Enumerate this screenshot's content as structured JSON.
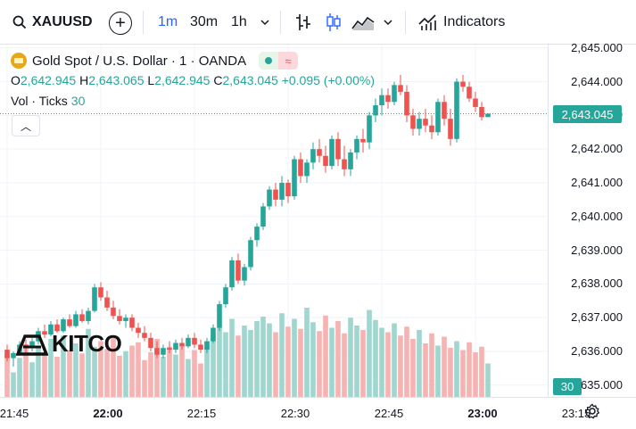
{
  "toolbar": {
    "symbol": "XAUUSD",
    "timeframes": [
      "1m",
      "30m",
      "1h"
    ],
    "active_timeframe": "1m",
    "indicators_label": "Indicators"
  },
  "legend": {
    "title": "Gold Spot / U.S. Dollar · 1 · OANDA",
    "open_label": "O",
    "open": "2,642.945",
    "high_label": "H",
    "high": "2,643.065",
    "low_label": "L",
    "low": "2,642.945",
    "close_label": "C",
    "close": "2,643.045",
    "change": "+0.095 (+0.00%)",
    "volume_label": "Vol · Ticks",
    "volume_value": "30"
  },
  "price_axis": {
    "ticks": [
      "2,645.000",
      "2,644.000",
      "2,643.000",
      "2,642.000",
      "2,641.000",
      "2,640.000",
      "2,639.000",
      "2,638.000",
      "2,637.000",
      "2,636.000",
      "2,635.000"
    ],
    "last_price": "2,643.045",
    "last_volume": "30"
  },
  "time_axis": {
    "labels": [
      {
        "text": "21:45",
        "bold": false
      },
      {
        "text": "22:00",
        "bold": true
      },
      {
        "text": "22:15",
        "bold": false
      },
      {
        "text": "22:30",
        "bold": false
      },
      {
        "text": "22:45",
        "bold": false
      },
      {
        "text": "23:00",
        "bold": true
      },
      {
        "text": "23:15",
        "bold": false
      }
    ]
  },
  "watermark": "KITCO",
  "colors": {
    "up": "#26a69a",
    "down": "#ef5350",
    "vol_up": "#9fd6cf",
    "vol_down": "#f7b2b2",
    "accent": "#2962ff"
  },
  "chart_data": {
    "type": "candlestick",
    "x_start": "21:45",
    "interval": "1m",
    "ohlc": [
      [
        2636.05,
        2636.2,
        2635.7,
        2635.8
      ],
      [
        2635.8,
        2636.0,
        2635.55,
        2635.95
      ],
      [
        2635.95,
        2636.3,
        2635.9,
        2636.2
      ],
      [
        2636.2,
        2636.35,
        2635.95,
        2636.1
      ],
      [
        2636.1,
        2636.4,
        2636.0,
        2636.3
      ],
      [
        2636.3,
        2636.7,
        2636.2,
        2636.6
      ],
      [
        2636.6,
        2636.8,
        2636.4,
        2636.5
      ],
      [
        2636.5,
        2636.9,
        2636.45,
        2636.8
      ],
      [
        2636.8,
        2636.95,
        2636.55,
        2636.6
      ],
      [
        2636.6,
        2637.0,
        2636.55,
        2636.95
      ],
      [
        2636.95,
        2637.1,
        2636.7,
        2636.75
      ],
      [
        2636.75,
        2637.2,
        2636.7,
        2637.1
      ],
      [
        2637.1,
        2637.25,
        2636.85,
        2636.9
      ],
      [
        2636.9,
        2637.3,
        2636.8,
        2637.2
      ],
      [
        2637.2,
        2638.0,
        2637.15,
        2637.9
      ],
      [
        2637.9,
        2638.05,
        2637.5,
        2637.6
      ],
      [
        2637.6,
        2637.8,
        2637.2,
        2637.3
      ],
      [
        2637.3,
        2637.5,
        2636.95,
        2637.05
      ],
      [
        2637.05,
        2637.25,
        2636.8,
        2636.9
      ],
      [
        2636.9,
        2637.1,
        2636.7,
        2637.0
      ],
      [
        2637.0,
        2637.1,
        2636.6,
        2636.7
      ],
      [
        2636.7,
        2636.85,
        2636.4,
        2636.55
      ],
      [
        2636.55,
        2636.75,
        2636.3,
        2636.4
      ],
      [
        2636.4,
        2636.55,
        2636.0,
        2636.1
      ],
      [
        2636.1,
        2636.3,
        2635.8,
        2635.9
      ],
      [
        2635.9,
        2636.2,
        2635.8,
        2636.1
      ],
      [
        2636.1,
        2636.3,
        2635.95,
        2636.05
      ],
      [
        2636.05,
        2636.35,
        2635.95,
        2636.25
      ],
      [
        2636.25,
        2636.4,
        2636.05,
        2636.15
      ],
      [
        2636.15,
        2636.5,
        2636.1,
        2636.4
      ],
      [
        2636.4,
        2636.55,
        2636.1,
        2636.2
      ],
      [
        2636.2,
        2636.35,
        2635.95,
        2636.05
      ],
      [
        2636.05,
        2636.4,
        2635.95,
        2636.3
      ],
      [
        2636.3,
        2636.8,
        2636.25,
        2636.7
      ],
      [
        2636.7,
        2637.5,
        2636.6,
        2637.4
      ],
      [
        2637.4,
        2638.0,
        2637.3,
        2637.9
      ],
      [
        2637.9,
        2638.8,
        2637.8,
        2638.7
      ],
      [
        2638.7,
        2638.9,
        2638.0,
        2638.1
      ],
      [
        2638.1,
        2638.6,
        2637.95,
        2638.5
      ],
      [
        2638.5,
        2639.4,
        2638.4,
        2639.3
      ],
      [
        2639.3,
        2639.8,
        2639.1,
        2639.7
      ],
      [
        2639.7,
        2640.4,
        2639.6,
        2640.3
      ],
      [
        2640.3,
        2640.9,
        2640.2,
        2640.8
      ],
      [
        2640.8,
        2641.0,
        2640.3,
        2640.5
      ],
      [
        2640.5,
        2641.2,
        2640.3,
        2641.0
      ],
      [
        2641.0,
        2641.1,
        2640.4,
        2640.6
      ],
      [
        2640.6,
        2641.8,
        2640.5,
        2641.7
      ],
      [
        2641.7,
        2641.9,
        2641.0,
        2641.2
      ],
      [
        2641.2,
        2641.7,
        2641.0,
        2641.6
      ],
      [
        2641.6,
        2642.2,
        2641.4,
        2642.0
      ],
      [
        2642.0,
        2642.3,
        2641.6,
        2641.8
      ],
      [
        2641.8,
        2642.1,
        2641.3,
        2641.5
      ],
      [
        2641.5,
        2642.4,
        2641.4,
        2642.3
      ],
      [
        2642.3,
        2642.5,
        2641.5,
        2641.7
      ],
      [
        2641.7,
        2642.1,
        2641.2,
        2641.4
      ],
      [
        2641.4,
        2642.0,
        2641.2,
        2641.9
      ],
      [
        2641.9,
        2642.4,
        2641.7,
        2642.3
      ],
      [
        2642.3,
        2642.6,
        2641.9,
        2642.2
      ],
      [
        2642.2,
        2643.1,
        2642.0,
        2643.0
      ],
      [
        2643.0,
        2643.5,
        2642.8,
        2643.3
      ],
      [
        2643.3,
        2643.8,
        2643.0,
        2643.6
      ],
      [
        2643.6,
        2643.8,
        2643.2,
        2643.4
      ],
      [
        2643.4,
        2644.0,
        2643.3,
        2643.9
      ],
      [
        2643.9,
        2644.2,
        2643.6,
        2643.7
      ],
      [
        2643.7,
        2643.9,
        2642.8,
        2643.0
      ],
      [
        2643.0,
        2643.2,
        2642.4,
        2642.6
      ],
      [
        2642.6,
        2643.1,
        2642.4,
        2642.9
      ],
      [
        2642.9,
        2643.2,
        2642.5,
        2642.7
      ],
      [
        2642.7,
        2643.0,
        2642.3,
        2642.5
      ],
      [
        2642.5,
        2643.5,
        2642.4,
        2643.4
      ],
      [
        2643.4,
        2643.6,
        2642.7,
        2642.9
      ],
      [
        2642.9,
        2643.2,
        2642.1,
        2642.3
      ],
      [
        2642.3,
        2644.1,
        2642.2,
        2644.0
      ],
      [
        2644.0,
        2644.2,
        2643.7,
        2643.85
      ],
      [
        2643.85,
        2644.0,
        2643.4,
        2643.5
      ],
      [
        2643.5,
        2643.7,
        2643.1,
        2643.25
      ],
      [
        2643.25,
        2643.4,
        2642.85,
        2642.95
      ],
      [
        2642.95,
        2643.07,
        2642.95,
        2643.05
      ]
    ],
    "volume": [
      38,
      22,
      35,
      47,
      31,
      44,
      40,
      52,
      36,
      55,
      42,
      48,
      39,
      61,
      45,
      50,
      43,
      55,
      37,
      41,
      46,
      49,
      33,
      40,
      52,
      36,
      45,
      38,
      47,
      34,
      42,
      30,
      50,
      56,
      62,
      58,
      70,
      55,
      64,
      60,
      68,
      72,
      66,
      58,
      75,
      63,
      70,
      61,
      80,
      67,
      59,
      73,
      62,
      68,
      57,
      71,
      64,
      60,
      78,
      69,
      62,
      58,
      66,
      55,
      63,
      52,
      60,
      48,
      57,
      46,
      54,
      44,
      50,
      42,
      49,
      40,
      45,
      30
    ],
    "ylim": [
      2634.65,
      2645.1
    ]
  }
}
